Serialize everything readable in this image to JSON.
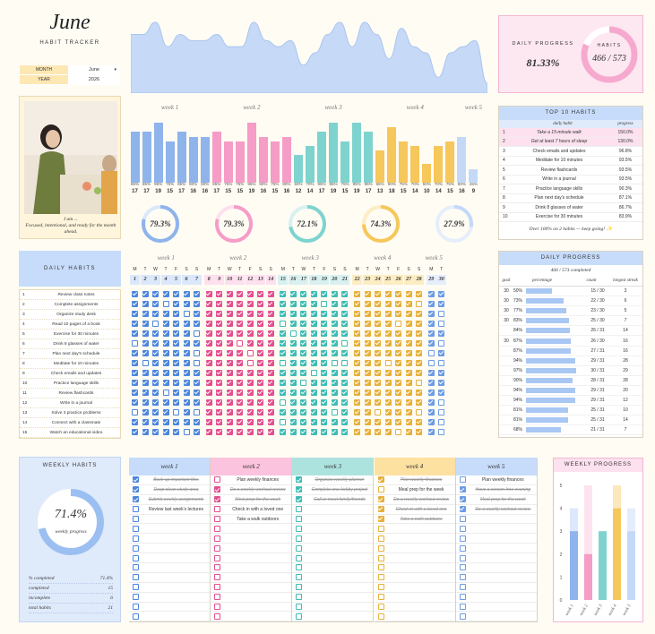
{
  "title": "June",
  "subtitle": "HABIT TRACKER",
  "month_label": "MONTH",
  "month_value": "June",
  "year_label": "YEAR",
  "year_value": "2026",
  "caption_line1": "I am ...",
  "caption_line2": "Focused, intentional, and ready for the month ahead.",
  "daily_progress_label": "DAILY PROGRESS",
  "daily_progress_value": "81.33%",
  "habits_label": "HABITS",
  "habits_value": "466 / 573",
  "week_labels": [
    "week 1",
    "week 2",
    "week 3",
    "week 4",
    "week 5"
  ],
  "day_percents": [
    "85%",
    "85%",
    "95%",
    "75%",
    "85%",
    "80%",
    "80%",
    "85%",
    "75%",
    "75%",
    "95%",
    "80%",
    "75%",
    "80%",
    "60%",
    "70%",
    "85%",
    "95%",
    "75%",
    "95%",
    "85%",
    "65%",
    "90%",
    "75%",
    "70%",
    "50%",
    "70%",
    "75%",
    "80%",
    "45%"
  ],
  "day_numbers": [
    "17",
    "17",
    "19",
    "15",
    "17",
    "16",
    "16",
    "17",
    "15",
    "15",
    "19",
    "16",
    "15",
    "16",
    "12",
    "14",
    "17",
    "19",
    "15",
    "19",
    "17",
    "13",
    "18",
    "15",
    "14",
    "10",
    "14",
    "15",
    "16",
    "9"
  ],
  "week_rings": [
    "79.3%",
    "79.3%",
    "72.1%",
    "74.3%",
    "27.9%"
  ],
  "top10": {
    "title": "TOP 10 HABITS",
    "col_habit": "daily habit",
    "col_progress": "progress",
    "rows": [
      {
        "n": "1",
        "habit": "Take a 15-minute walk",
        "p": "150.0%"
      },
      {
        "n": "2",
        "habit": "Get at least 7 hours of sleep",
        "p": "130.0%"
      },
      {
        "n": "3",
        "habit": "Check emails and updates",
        "p": "96.8%"
      },
      {
        "n": "4",
        "habit": "Meditate for 10 minutes",
        "p": "93.5%"
      },
      {
        "n": "5",
        "habit": "Review flashcards",
        "p": "93.5%"
      },
      {
        "n": "6",
        "habit": "Write in a journal",
        "p": "93.5%"
      },
      {
        "n": "7",
        "habit": "Practice language skills",
        "p": "90.3%"
      },
      {
        "n": "8",
        "habit": "Plan next day's schedule",
        "p": "87.1%"
      },
      {
        "n": "9",
        "habit": "Drink 8 glasses of water",
        "p": "86.7%"
      },
      {
        "n": "10",
        "habit": "Exercise for 30 minutes",
        "p": "83.9%"
      }
    ],
    "note": "Over 100% on 2 habits — keep going! ✨"
  },
  "daily_habits": {
    "title": "DAILY HABITS",
    "items": [
      "Review class notes",
      "Complete assignments",
      "Organize study desk",
      "Read 10 pages of a book",
      "Exercise for 30 minutes",
      "Drink 8 glasses of water",
      "Plan next day's schedule",
      "Meditate for 10 minutes",
      "Check emails and updates",
      "Practice language skills",
      "Review flashcards",
      "Write in a journal",
      "Solve 3 practice problems",
      "Connect with a classmate",
      "Watch an educational video"
    ]
  },
  "day_letters": [
    "M",
    "T",
    "W",
    "T",
    "F",
    "S",
    "S"
  ],
  "grid_days": [
    "1",
    "2",
    "3",
    "4",
    "5",
    "6",
    "7",
    "8",
    "9",
    "10",
    "11",
    "12",
    "13",
    "14",
    "15",
    "16",
    "17",
    "18",
    "19",
    "20",
    "21",
    "22",
    "23",
    "24",
    "25",
    "26",
    "27",
    "28",
    "29",
    "30"
  ],
  "grid_checks": [
    "111111111111111111111111111111",
    "111011111111111111011111111011",
    "111110111111111111111111111110",
    "110111111111110111111111101110",
    "111111011111111011111111111111",
    "011111111101111111110111111110",
    "111111011110111111111111111101",
    "101111011110110111100111011100",
    "111111111111111110111111111111",
    "111111111111111101111111111011",
    "111011111111111111111111111111",
    "111111111111110111111111111110",
    "011101011111111111101110111010",
    "111111111111110111111111111110",
    "111110111111111111111111101110"
  ],
  "daily_progress": {
    "title": "DAILY PROGRESS",
    "summary": "466 / 573  completed",
    "col_goal": "goal",
    "col_percentage": "percentage",
    "col_count": "count",
    "col_streak": "longest streak",
    "rows": [
      {
        "goal": "30",
        "pct": "50%",
        "p": 50,
        "count": "15  /  30",
        "streak": "3"
      },
      {
        "goal": "30",
        "pct": "73%",
        "p": 73,
        "count": "22  /  30",
        "streak": "6"
      },
      {
        "goal": "30",
        "pct": "77%",
        "p": 77,
        "count": "23  /  30",
        "streak": "5"
      },
      {
        "goal": "30",
        "pct": "83%",
        "p": 83,
        "count": "25  /  30",
        "streak": "7"
      },
      {
        "goal": "",
        "pct": "84%",
        "p": 84,
        "count": "26  /  31",
        "streak": "14"
      },
      {
        "goal": "30",
        "pct": "87%",
        "p": 87,
        "count": "26  /  30",
        "streak": "16"
      },
      {
        "goal": "",
        "pct": "87%",
        "p": 87,
        "count": "27  /  31",
        "streak": "16"
      },
      {
        "goal": "",
        "pct": "94%",
        "p": 94,
        "count": "29  /  31",
        "streak": "28"
      },
      {
        "goal": "",
        "pct": "97%",
        "p": 97,
        "count": "30  /  31",
        "streak": "29"
      },
      {
        "goal": "",
        "pct": "90%",
        "p": 90,
        "count": "28  /  31",
        "streak": "28"
      },
      {
        "goal": "",
        "pct": "94%",
        "p": 94,
        "count": "29  /  31",
        "streak": "20"
      },
      {
        "goal": "",
        "pct": "94%",
        "p": 94,
        "count": "29  /  31",
        "streak": "12"
      },
      {
        "goal": "",
        "pct": "81%",
        "p": 81,
        "count": "25  /  31",
        "streak": "10"
      },
      {
        "goal": "",
        "pct": "81%",
        "p": 81,
        "count": "25  /  31",
        "streak": "14"
      },
      {
        "goal": "",
        "pct": "68%",
        "p": 68,
        "count": "21  /  31",
        "streak": "7"
      }
    ]
  },
  "weekly_habits": {
    "title": "WEEKLY HABITS",
    "ring_value": "71.4%",
    "ring_label": "weekly progress",
    "stats": [
      {
        "label": "% completed",
        "value": "71.4%"
      },
      {
        "label": "completed",
        "value": "15"
      },
      {
        "label": "incomplete",
        "value": "6"
      },
      {
        "label": "total habits",
        "value": "21"
      }
    ]
  },
  "weekly_columns": [
    {
      "title": "week 1",
      "items": [
        {
          "t": "Back up important files",
          "c": true
        },
        {
          "t": "Deep clean study area",
          "c": true
        },
        {
          "t": "Submit weekly assignments",
          "c": true
        },
        {
          "t": "Review last week's lectures",
          "c": false
        }
      ]
    },
    {
      "title": "week 2",
      "items": [
        {
          "t": "Plan weekly finances",
          "c": false
        },
        {
          "t": "Do a weekly workout review",
          "c": true
        },
        {
          "t": "Meal prep for the week",
          "c": true
        },
        {
          "t": "Check in with a loved one",
          "c": false
        },
        {
          "t": "Take a walk outdoors",
          "c": false
        }
      ]
    },
    {
      "title": "week 3",
      "items": [
        {
          "t": "Organize weekly planner",
          "c": true
        },
        {
          "t": "Complete one hobby project",
          "c": true
        },
        {
          "t": "Call or meet family/friends",
          "c": true
        }
      ]
    },
    {
      "title": "week 4",
      "items": [
        {
          "t": "Plan weekly finances",
          "c": true
        },
        {
          "t": "Meal prep for the week",
          "c": false
        },
        {
          "t": "Do a weekly workout review",
          "c": true
        },
        {
          "t": "Check in with a loved one",
          "c": true
        },
        {
          "t": "Take a walk outdoors",
          "c": true
        }
      ]
    },
    {
      "title": "week 5",
      "items": [
        {
          "t": "Plan weekly finances",
          "c": false
        },
        {
          "t": "Have a screen-free evening",
          "c": true
        },
        {
          "t": "Meal prep for the week",
          "c": true
        },
        {
          "t": "Do a weekly workout review",
          "c": true
        }
      ]
    }
  ],
  "weekly_progress": {
    "title": "WEEKLY PROGRESS",
    "ticks": [
      "0",
      "1",
      "2",
      "3",
      "4",
      "5"
    ],
    "weeks": [
      "week 1",
      "week 2",
      "week 3",
      "week 4",
      "week 5"
    ],
    "completed": [
      3,
      2,
      3,
      4,
      3
    ],
    "total": [
      4,
      5,
      3,
      5,
      4
    ]
  },
  "colors": {
    "blue": "#8fb4ec",
    "pink": "#f59cc7",
    "teal": "#7fd3cf",
    "yellow": "#f6c75a",
    "lightblue": "#c4d9f8"
  }
}
